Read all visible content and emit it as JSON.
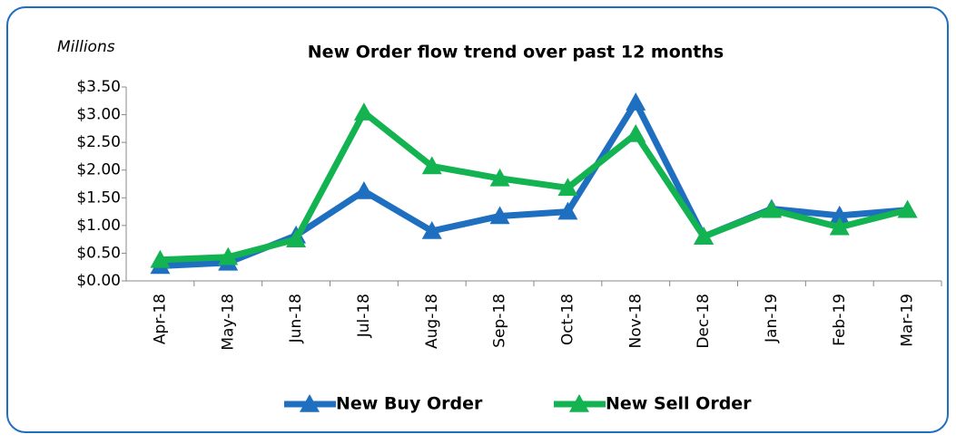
{
  "chart_data": {
    "type": "line",
    "title": "New Order flow trend over past 12 months",
    "y_unit_label": "Millions",
    "categories": [
      "Apr-18",
      "May-18",
      "Jun-18",
      "Jul-18",
      "Aug-18",
      "Sep-18",
      "Oct-18",
      "Nov-18",
      "Dec-18",
      "Jan-19",
      "Feb-19",
      "Mar-19"
    ],
    "series": [
      {
        "name": "New Buy Order",
        "color": "#1f6fc1",
        "values": [
          0.27,
          0.33,
          0.82,
          1.62,
          0.9,
          1.17,
          1.25,
          3.22,
          0.8,
          1.3,
          1.18,
          1.28
        ]
      },
      {
        "name": "New Sell Order",
        "color": "#14b351",
        "values": [
          0.38,
          0.43,
          0.75,
          3.04,
          2.07,
          1.85,
          1.68,
          2.65,
          0.8,
          1.28,
          0.97,
          1.28
        ]
      }
    ],
    "ylim": [
      0,
      3.5
    ],
    "yticks": [
      {
        "value": 0,
        "label": "$0.00"
      },
      {
        "value": 0.5,
        "label": "$0.50"
      },
      {
        "value": 1,
        "label": "$1.00"
      },
      {
        "value": 1.5,
        "label": "$1.50"
      },
      {
        "value": 2,
        "label": "$2.00"
      },
      {
        "value": 2.5,
        "label": "$2.50"
      },
      {
        "value": 3,
        "label": "$3.00"
      },
      {
        "value": 3.5,
        "label": "$3.50"
      }
    ],
    "legend": "bottom"
  }
}
